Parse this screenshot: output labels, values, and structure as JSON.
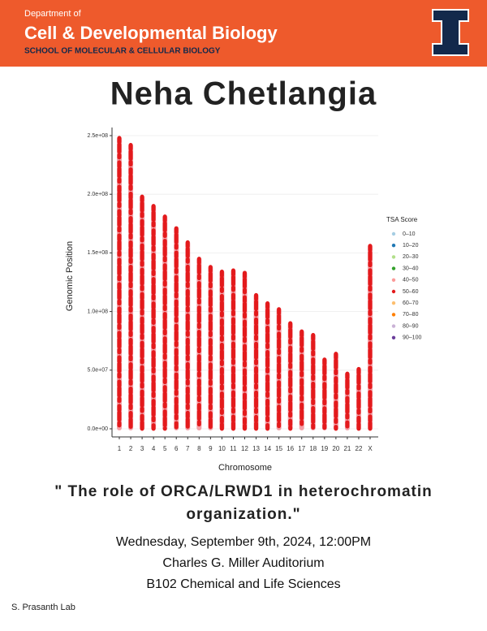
{
  "header": {
    "department_of": "Department of",
    "department": "Cell & Developmental Biology",
    "school": "SCHOOL OF MOLECULAR & CELLULAR BIOLOGY"
  },
  "speaker": "Neha Chetlangia",
  "chart_data": {
    "type": "strip",
    "xlabel": "Chromosome",
    "ylabel": "Genomic Position",
    "categories": [
      "1",
      "2",
      "3",
      "4",
      "5",
      "6",
      "7",
      "8",
      "9",
      "10",
      "11",
      "12",
      "13",
      "14",
      "15",
      "16",
      "17",
      "18",
      "19",
      "20",
      "21",
      "22",
      "X"
    ],
    "values": [
      248000000,
      242000000,
      198000000,
      190000000,
      181000000,
      171000000,
      159000000,
      145000000,
      138000000,
      134000000,
      135000000,
      133000000,
      114000000,
      107000000,
      102000000,
      90000000,
      83000000,
      80000000,
      59000000,
      64000000,
      47000000,
      51000000,
      156000000
    ],
    "color": "#f4a0a8",
    "ylim": [
      0,
      250000000
    ],
    "yticks": [
      {
        "value": 0,
        "label": "0.0e+00"
      },
      {
        "value": 50000000,
        "label": "5.0e+07"
      },
      {
        "value": 100000000,
        "label": "1.0e+08"
      },
      {
        "value": 150000000,
        "label": "1.5e+08"
      },
      {
        "value": 200000000,
        "label": "2.0e+08"
      },
      {
        "value": 250000000,
        "label": "2.5e+08"
      }
    ],
    "grid": true,
    "legend": {
      "title": "TSA Score",
      "items": [
        {
          "name": "0–10",
          "color": "#a6cee3"
        },
        {
          "name": "10–20",
          "color": "#1f78b4"
        },
        {
          "name": "20–30",
          "color": "#b2df8a"
        },
        {
          "name": "30–40",
          "color": "#33a02c"
        },
        {
          "name": "40–50",
          "color": "#fb9a99"
        },
        {
          "name": "50–60",
          "color": "#e31a1c"
        },
        {
          "name": "60–70",
          "color": "#fdbf6f"
        },
        {
          "name": "70–80",
          "color": "#ff7f00"
        },
        {
          "name": "80–90",
          "color": "#cab2d6"
        },
        {
          "name": "90–100",
          "color": "#6a3d9a"
        }
      ]
    }
  },
  "talk_title": [
    "\" The role of ORCA/LRWD1 in heterochromatin",
    "organization.\""
  ],
  "details": [
    "Wednesday, September 9th, 2024, 12:00PM",
    "Charles G. Miller Auditorium",
    "B102 Chemical and Life Sciences"
  ],
  "lab": "S. Prasanth Lab"
}
